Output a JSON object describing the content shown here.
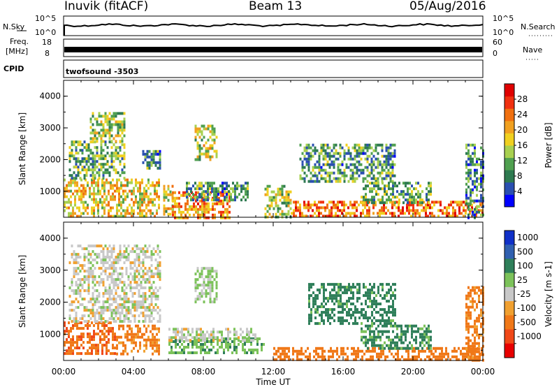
{
  "header": {
    "station": "Inuvik (fitACF)",
    "beam": "Beam 13",
    "date": "05/Aug/2016"
  },
  "strips": {
    "nsky_label": "N.Sky",
    "nsky_ticks": [
      "10^5",
      "10^0"
    ],
    "nsearch_label": "N.Search",
    "nsearch_ticks": [
      "10^5",
      "10^0"
    ],
    "freq_label": "Freq.",
    "freq_unit": "[MHz]",
    "freq_ticks": [
      "18",
      "8"
    ],
    "nave_label": "Nave",
    "nave_ticks": [
      "60",
      "0"
    ],
    "cpid_label": "CPID",
    "cpid_value": "twofsound -3503"
  },
  "colors": {
    "power_scale": [
      "#0000ff",
      "#2a4fb0",
      "#2e7a50",
      "#50a050",
      "#a8d050",
      "#f0d020",
      "#f0a020",
      "#f07010",
      "#f03010",
      "#e00000"
    ],
    "velocity_scale": [
      "#1030c8",
      "#3060b0",
      "#2f7f5a",
      "#7cc25a",
      "#c8c8c8",
      "#f0a030",
      "#f07818",
      "#f04818",
      "#e80000"
    ]
  },
  "chart_data": [
    {
      "type": "heatmap",
      "title": "",
      "ylabel": "Slant Range [km]",
      "xlabel": "Time UT",
      "x_ticks": [
        "00:00",
        "04:00",
        "08:00",
        "12:00",
        "16:00",
        "20:00",
        "00:00"
      ],
      "y_ticks": [
        1000,
        2000,
        3000,
        4000
      ],
      "xlim_hours": [
        0,
        24
      ],
      "ylim_km": [
        180,
        4500
      ],
      "colorbar": {
        "label": "Power [dB]",
        "range": [
          0,
          32
        ],
        "ticks": [
          "4",
          "8",
          "12",
          "16",
          "20",
          "24",
          "28"
        ]
      },
      "echo_regions": [
        {
          "t0": 0.0,
          "t1": 5.5,
          "r0": 180,
          "r1": 1400,
          "value": 18
        },
        {
          "t0": 0.3,
          "t1": 3.5,
          "r0": 1400,
          "r1": 2600,
          "value": 12
        },
        {
          "t0": 1.5,
          "t1": 3.5,
          "r0": 2600,
          "r1": 3500,
          "value": 14
        },
        {
          "t0": 4.5,
          "t1": 5.5,
          "r0": 1700,
          "r1": 2300,
          "value": 10
        },
        {
          "t0": 5.7,
          "t1": 6.3,
          "r0": 180,
          "r1": 1200,
          "value": 16
        },
        {
          "t0": 6.2,
          "t1": 9.5,
          "r0": 180,
          "r1": 1000,
          "value": 22
        },
        {
          "t0": 7.0,
          "t1": 10.5,
          "r0": 700,
          "r1": 1300,
          "value": 10
        },
        {
          "t0": 7.5,
          "t1": 8.8,
          "r0": 2000,
          "r1": 3100,
          "value": 16
        },
        {
          "t0": 11.5,
          "t1": 13.0,
          "r0": 180,
          "r1": 1200,
          "value": 14
        },
        {
          "t0": 13.0,
          "t1": 24.0,
          "r0": 180,
          "r1": 700,
          "value": 24
        },
        {
          "t0": 13.5,
          "t1": 19.0,
          "r0": 1300,
          "r1": 2500,
          "value": 10
        },
        {
          "t0": 17.0,
          "t1": 21.0,
          "r0": 600,
          "r1": 1300,
          "value": 12
        },
        {
          "t0": 23.0,
          "t1": 24.0,
          "r0": 180,
          "r1": 2500,
          "value": 8
        }
      ]
    },
    {
      "type": "heatmap",
      "title": "",
      "ylabel": "Slant Range [km]",
      "xlabel": "Time UT",
      "x_ticks": [
        "00:00",
        "04:00",
        "08:00",
        "12:00",
        "16:00",
        "20:00",
        "00:00"
      ],
      "y_ticks": [
        1000,
        2000,
        3000,
        4000
      ],
      "xlim_hours": [
        0,
        24
      ],
      "ylim_km": [
        180,
        4500
      ],
      "colorbar": {
        "label": "Velocity [m s-1]",
        "ticks": [
          "1000",
          "500",
          "100",
          "25",
          "-25",
          "-100",
          "-500",
          "-1000"
        ]
      },
      "echo_regions": [
        {
          "t0": 0.0,
          "t1": 3.0,
          "r0": 400,
          "r1": 1400,
          "value": -400
        },
        {
          "t0": 0.3,
          "t1": 5.5,
          "r0": 1400,
          "r1": 3800,
          "value": 0
        },
        {
          "t0": 3.0,
          "t1": 5.5,
          "r0": 400,
          "r1": 1300,
          "value": -150
        },
        {
          "t0": 6.0,
          "t1": 11.5,
          "r0": 400,
          "r1": 900,
          "value": 80
        },
        {
          "t0": 6.0,
          "t1": 11.0,
          "r0": 800,
          "r1": 1200,
          "value": 0
        },
        {
          "t0": 7.5,
          "t1": 8.8,
          "r0": 2000,
          "r1": 3100,
          "value": 40
        },
        {
          "t0": 12.0,
          "t1": 24.0,
          "r0": 180,
          "r1": 600,
          "value": -300
        },
        {
          "t0": 14.0,
          "t1": 19.0,
          "r0": 1300,
          "r1": 2600,
          "value": 200
        },
        {
          "t0": 17.0,
          "t1": 21.0,
          "r0": 600,
          "r1": 1300,
          "value": 150
        },
        {
          "t0": 23.0,
          "t1": 24.0,
          "r0": 180,
          "r1": 2500,
          "value": -200
        }
      ]
    }
  ]
}
